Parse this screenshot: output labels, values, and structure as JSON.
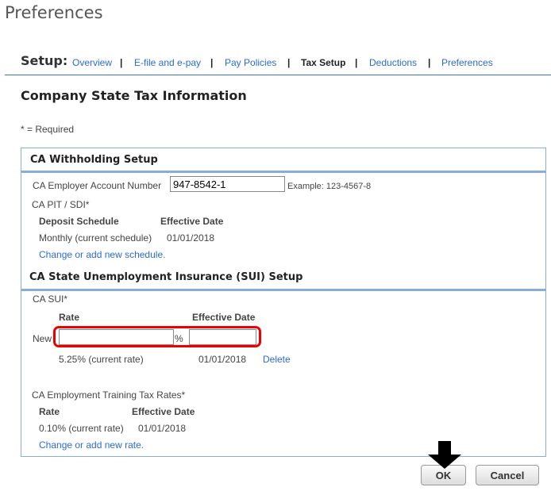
{
  "title": "Preferences",
  "nav": {
    "label": "Setup:",
    "items": [
      {
        "label": "Overview",
        "active": false
      },
      {
        "label": "E-file and e-pay",
        "active": false
      },
      {
        "label": "Pay Policies",
        "active": false
      },
      {
        "label": "Tax Setup",
        "active": true
      },
      {
        "label": "Deductions",
        "active": false
      },
      {
        "label": "Preferences",
        "active": false
      }
    ]
  },
  "page_title": "Company State Tax Information",
  "required_note": "* = Required",
  "withholding": {
    "header": "CA Withholding Setup",
    "account_label": "CA Employer Account Number",
    "account_value": "947-8542-1",
    "account_example": "Example: 123-4567-8",
    "pit_label": "CA PIT / SDI*",
    "col_schedule": "Deposit Schedule",
    "col_date": "Effective Date",
    "schedule": "Monthly (current schedule)",
    "schedule_date": "01/01/2018",
    "change_link": "Change or add new schedule."
  },
  "sui": {
    "header": "CA State Unemployment Insurance (SUI) Setup",
    "label": "CA SUI*",
    "col_rate": "Rate",
    "col_date": "Effective Date",
    "new_label": "New",
    "rate_value": "",
    "percent": "%",
    "date_value": "",
    "current_rate": "5.25% (current rate)",
    "current_date": "01/01/2018",
    "delete_link": "Delete",
    "ett_label": "CA Employment Training Tax Rates*",
    "ett_col_rate": "Rate",
    "ett_col_date": "Effective Date",
    "ett_rate": "0.10% (current rate)",
    "ett_date": "01/01/2018",
    "ett_change_link": "Change or add new rate."
  },
  "buttons": {
    "ok": "OK",
    "cancel": "Cancel"
  },
  "colors": {
    "link": "#2a6ad8",
    "border": "#86aed9",
    "highlight": "#ee0000"
  }
}
